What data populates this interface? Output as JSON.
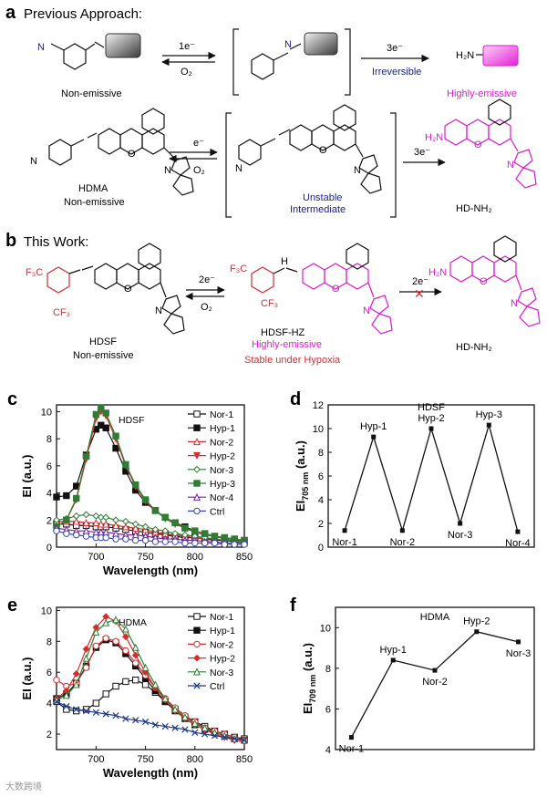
{
  "panels": {
    "a": "a",
    "b": "b",
    "c": "c",
    "d": "d",
    "e": "e",
    "f": "f"
  },
  "scheme_a": {
    "heading": "Previous Approach:",
    "e1": "1e⁻",
    "o2_1": "O₂",
    "e3_1": "3e⁻",
    "irrev": "Irreversible",
    "h2n": "H₂N",
    "nonemissive1": "Non-emissive",
    "highly": "Highly-emissive",
    "e_2": "e⁻",
    "o2_2": "O₂",
    "e3_2": "3e⁻",
    "hdma": "HDMA",
    "nonemissive2": "Non-emissive",
    "unstable": "Unstable",
    "intermediate": "Intermediate",
    "hdnh2": "HD-NH₂"
  },
  "scheme_b": {
    "heading": "This Work:",
    "e2": "2e⁻",
    "o2": "O₂",
    "e2b": "2e⁻",
    "hdsf": "HDSF",
    "nonemissive": "Non-emissive",
    "hdsfhz": "HDSF-HZ",
    "highly": "Highly-emissive",
    "stable": "Stable under Hypoxia",
    "hdnh2": "HD-NH₂"
  },
  "atoms": {
    "n": "N",
    "o": "O",
    "h2n": "H₂N",
    "cf3": "CF₃",
    "f3c": "F₃C",
    "h": "H",
    "plus": "+"
  },
  "chart_data": [
    {
      "panel": "c",
      "type": "line",
      "title": "HDSF",
      "xlabel": "Wavelength (nm)",
      "ylabel": "EI (a.u.)",
      "xlim": [
        660,
        850
      ],
      "ylim": [
        0,
        10.5
      ],
      "xticks": [
        700,
        750,
        800,
        850
      ],
      "yticks": [
        0,
        2,
        4,
        6,
        8,
        10
      ],
      "x": [
        660,
        670,
        680,
        690,
        700,
        705,
        710,
        720,
        730,
        740,
        750,
        760,
        770,
        780,
        790,
        800,
        810,
        820,
        830,
        840,
        850
      ],
      "series": [
        {
          "name": "Nor-1",
          "color": "#111111",
          "marker": "square-open",
          "values": [
            1.7,
            1.7,
            1.6,
            1.6,
            1.5,
            1.5,
            1.5,
            1.4,
            1.3,
            1.2,
            1.1,
            1.0,
            0.9,
            0.8,
            0.7,
            0.7,
            0.6,
            0.5,
            0.5,
            0.4,
            0.4
          ]
        },
        {
          "name": "Hyp-1",
          "color": "#111111",
          "marker": "square",
          "values": [
            3.7,
            3.8,
            4.5,
            6.8,
            8.7,
            9.0,
            8.8,
            7.3,
            5.6,
            4.2,
            3.3,
            2.7,
            2.2,
            1.8,
            1.5,
            1.2,
            1.0,
            0.8,
            0.7,
            0.6,
            0.5
          ]
        },
        {
          "name": "Nor-2",
          "color": "#d32f2f",
          "marker": "triangle-open",
          "values": [
            1.9,
            1.9,
            1.9,
            1.8,
            1.8,
            1.7,
            1.7,
            1.6,
            1.5,
            1.4,
            1.3,
            1.1,
            1.0,
            0.9,
            0.8,
            0.7,
            0.6,
            0.6,
            0.5,
            0.5,
            0.4
          ]
        },
        {
          "name": "Hyp-2",
          "color": "#d32f2f",
          "marker": "triangle-down",
          "values": [
            1.5,
            2.0,
            3.5,
            6.5,
            9.5,
            10.0,
            9.7,
            8.0,
            6.0,
            4.5,
            3.4,
            2.7,
            2.1,
            1.7,
            1.4,
            1.1,
            0.9,
            0.8,
            0.6,
            0.5,
            0.5
          ]
        },
        {
          "name": "Nor-3",
          "color": "#2e7d32",
          "marker": "diamond-open",
          "values": [
            2.0,
            2.1,
            2.3,
            2.4,
            2.3,
            2.2,
            2.2,
            2.0,
            1.9,
            1.7,
            1.5,
            1.3,
            1.2,
            1.0,
            0.9,
            0.8,
            0.7,
            0.6,
            0.5,
            0.5,
            0.4
          ]
        },
        {
          "name": "Hyp-3",
          "color": "#2e7d32",
          "marker": "square",
          "values": [
            1.5,
            2.0,
            3.6,
            6.7,
            9.8,
            10.3,
            9.9,
            8.2,
            6.1,
            4.6,
            3.5,
            2.7,
            2.2,
            1.8,
            1.4,
            1.2,
            1.0,
            0.8,
            0.7,
            0.6,
            0.5
          ]
        },
        {
          "name": "Nor-4",
          "color": "#7b1fa2",
          "marker": "triangle-open",
          "values": [
            1.4,
            1.3,
            1.2,
            1.2,
            1.1,
            1.1,
            1.1,
            1.0,
            0.9,
            0.9,
            0.8,
            0.7,
            0.6,
            0.6,
            0.5,
            0.5,
            0.4,
            0.4,
            0.3,
            0.3,
            0.3
          ]
        },
        {
          "name": "Ctrl",
          "color": "#3949ab",
          "marker": "circle-open",
          "values": [
            1.2,
            1.0,
            0.9,
            0.8,
            0.7,
            0.7,
            0.7,
            0.6,
            0.6,
            0.5,
            0.5,
            0.4,
            0.4,
            0.4,
            0.3,
            0.3,
            0.3,
            0.3,
            0.2,
            0.2,
            0.2
          ]
        }
      ]
    },
    {
      "panel": "d",
      "type": "line",
      "title": "HDSF",
      "ylabel": "EI",
      "ylabel_sub": "705 nm",
      "ylabel_unit": " (a.u.)",
      "ylim": [
        0,
        12
      ],
      "yticks": [
        0,
        2,
        4,
        6,
        8,
        10,
        12
      ],
      "categories": [
        "Nor-1",
        "Hyp-1",
        "Nor-2",
        "Hyp-2",
        "Nor-3",
        "Hyp-3",
        "Nor-4"
      ],
      "values": [
        1.4,
        9.3,
        1.4,
        10.0,
        2.0,
        10.3,
        1.3
      ]
    },
    {
      "panel": "e",
      "type": "line",
      "title": "HDMA",
      "xlabel": "Wavelength (nm)",
      "ylabel": "EI (a.u.)",
      "xlim": [
        660,
        850
      ],
      "ylim": [
        1,
        10.2
      ],
      "xticks": [
        700,
        750,
        800,
        850
      ],
      "yticks": [
        2,
        4,
        6,
        8,
        10
      ],
      "x": [
        660,
        670,
        680,
        690,
        700,
        710,
        720,
        730,
        740,
        750,
        760,
        770,
        780,
        790,
        800,
        810,
        820,
        830,
        840,
        850
      ],
      "series": [
        {
          "name": "Nor-1",
          "color": "#111111",
          "marker": "square-open",
          "values": [
            4.1,
            3.6,
            3.5,
            3.6,
            4.0,
            4.6,
            5.1,
            5.4,
            5.5,
            5.2,
            4.7,
            4.1,
            3.6,
            3.1,
            2.8,
            2.5,
            2.2,
            2.0,
            1.8,
            1.7
          ]
        },
        {
          "name": "Hyp-1",
          "color": "#111111",
          "marker": "square",
          "values": [
            4.3,
            4.6,
            5.3,
            6.4,
            7.6,
            8.1,
            7.9,
            7.2,
            6.4,
            5.6,
            4.8,
            4.1,
            3.5,
            3.0,
            2.6,
            2.3,
            2.1,
            1.9,
            1.7,
            1.6
          ]
        },
        {
          "name": "Nor-2",
          "color": "#d32f2f",
          "marker": "circle-open",
          "values": [
            5.5,
            5.1,
            5.3,
            6.3,
            7.7,
            8.2,
            8.0,
            7.4,
            6.6,
            5.8,
            5.0,
            4.3,
            3.7,
            3.2,
            2.8,
            2.4,
            2.2,
            2.0,
            1.8,
            1.6
          ]
        },
        {
          "name": "Hyp-2",
          "color": "#d32f2f",
          "marker": "diamond",
          "values": [
            4.3,
            4.8,
            5.9,
            7.5,
            8.9,
            9.6,
            9.3,
            8.3,
            7.1,
            6.0,
            5.0,
            4.2,
            3.5,
            3.0,
            2.6,
            2.3,
            2.0,
            1.8,
            1.6,
            1.5
          ]
        },
        {
          "name": "Nor-3",
          "color": "#2e7d32",
          "marker": "triangle-open",
          "values": [
            4.2,
            4.5,
            5.2,
            6.9,
            8.6,
            9.2,
            9.4,
            8.8,
            7.6,
            6.3,
            5.2,
            4.3,
            3.6,
            3.1,
            2.7,
            2.4,
            2.1,
            1.9,
            1.7,
            1.6
          ]
        },
        {
          "name": "Ctrl",
          "color": "#1e3a8a",
          "marker": "cross",
          "values": [
            4.1,
            3.8,
            3.6,
            3.5,
            3.4,
            3.3,
            3.2,
            3.0,
            2.9,
            2.8,
            2.6,
            2.5,
            2.4,
            2.3,
            2.1,
            2.0,
            1.9,
            1.8,
            1.7,
            1.6
          ]
        }
      ]
    },
    {
      "panel": "f",
      "type": "line",
      "title": "HDMA",
      "ylabel": "EI",
      "ylabel_sub": "709 nm",
      "ylabel_unit": " (a.u.)",
      "ylim": [
        4,
        11
      ],
      "yticks": [
        4,
        6,
        8,
        10
      ],
      "categories": [
        "Nor-1",
        "Hyp-1",
        "Nor-2",
        "Hyp-2",
        "Nor-3"
      ],
      "values": [
        4.6,
        8.4,
        7.9,
        9.8,
        9.3
      ]
    }
  ],
  "watermark": "大数跨境"
}
